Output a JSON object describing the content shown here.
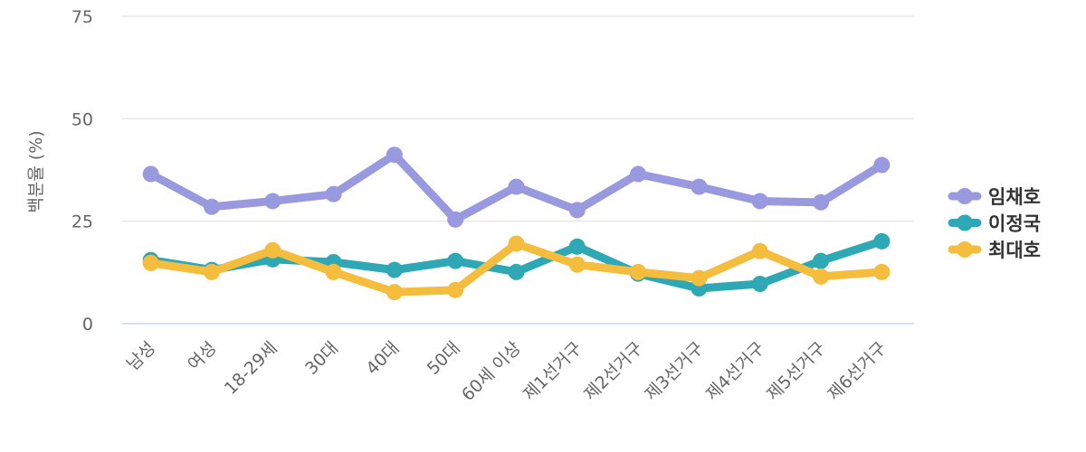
{
  "chart_data": {
    "type": "line",
    "title": "",
    "xlabel": "",
    "ylabel": "백분율 (%)",
    "ylim": [
      0,
      75
    ],
    "yticks": [
      0,
      25,
      50,
      75
    ],
    "grid": true,
    "legend_position": "right",
    "categories": [
      "남성",
      "여성",
      "18-29세",
      "30대",
      "40대",
      "50대",
      "60세 이상",
      "제1선거구",
      "제2선거구",
      "제3선거구",
      "제4선거구",
      "제5선거구",
      "제6선거구"
    ],
    "series": [
      {
        "name": "임채호",
        "color": "#9999e0",
        "values": [
          36.5,
          28.5,
          29.9,
          31.6,
          41.2,
          25.4,
          33.4,
          27.7,
          36.5,
          33.4,
          29.9,
          29.6,
          38.7
        ]
      },
      {
        "name": "이정국",
        "color": "#2fa8b5",
        "values": [
          15.5,
          13.1,
          15.7,
          15.0,
          13.1,
          15.3,
          12.6,
          18.8,
          12.2,
          8.6,
          9.7,
          15.3,
          20.1
        ]
      },
      {
        "name": "최대호",
        "color": "#f5bd3e",
        "values": [
          14.8,
          12.6,
          17.9,
          12.6,
          7.7,
          8.2,
          19.5,
          14.4,
          12.6,
          11.1,
          17.7,
          11.5,
          12.6
        ]
      }
    ]
  }
}
